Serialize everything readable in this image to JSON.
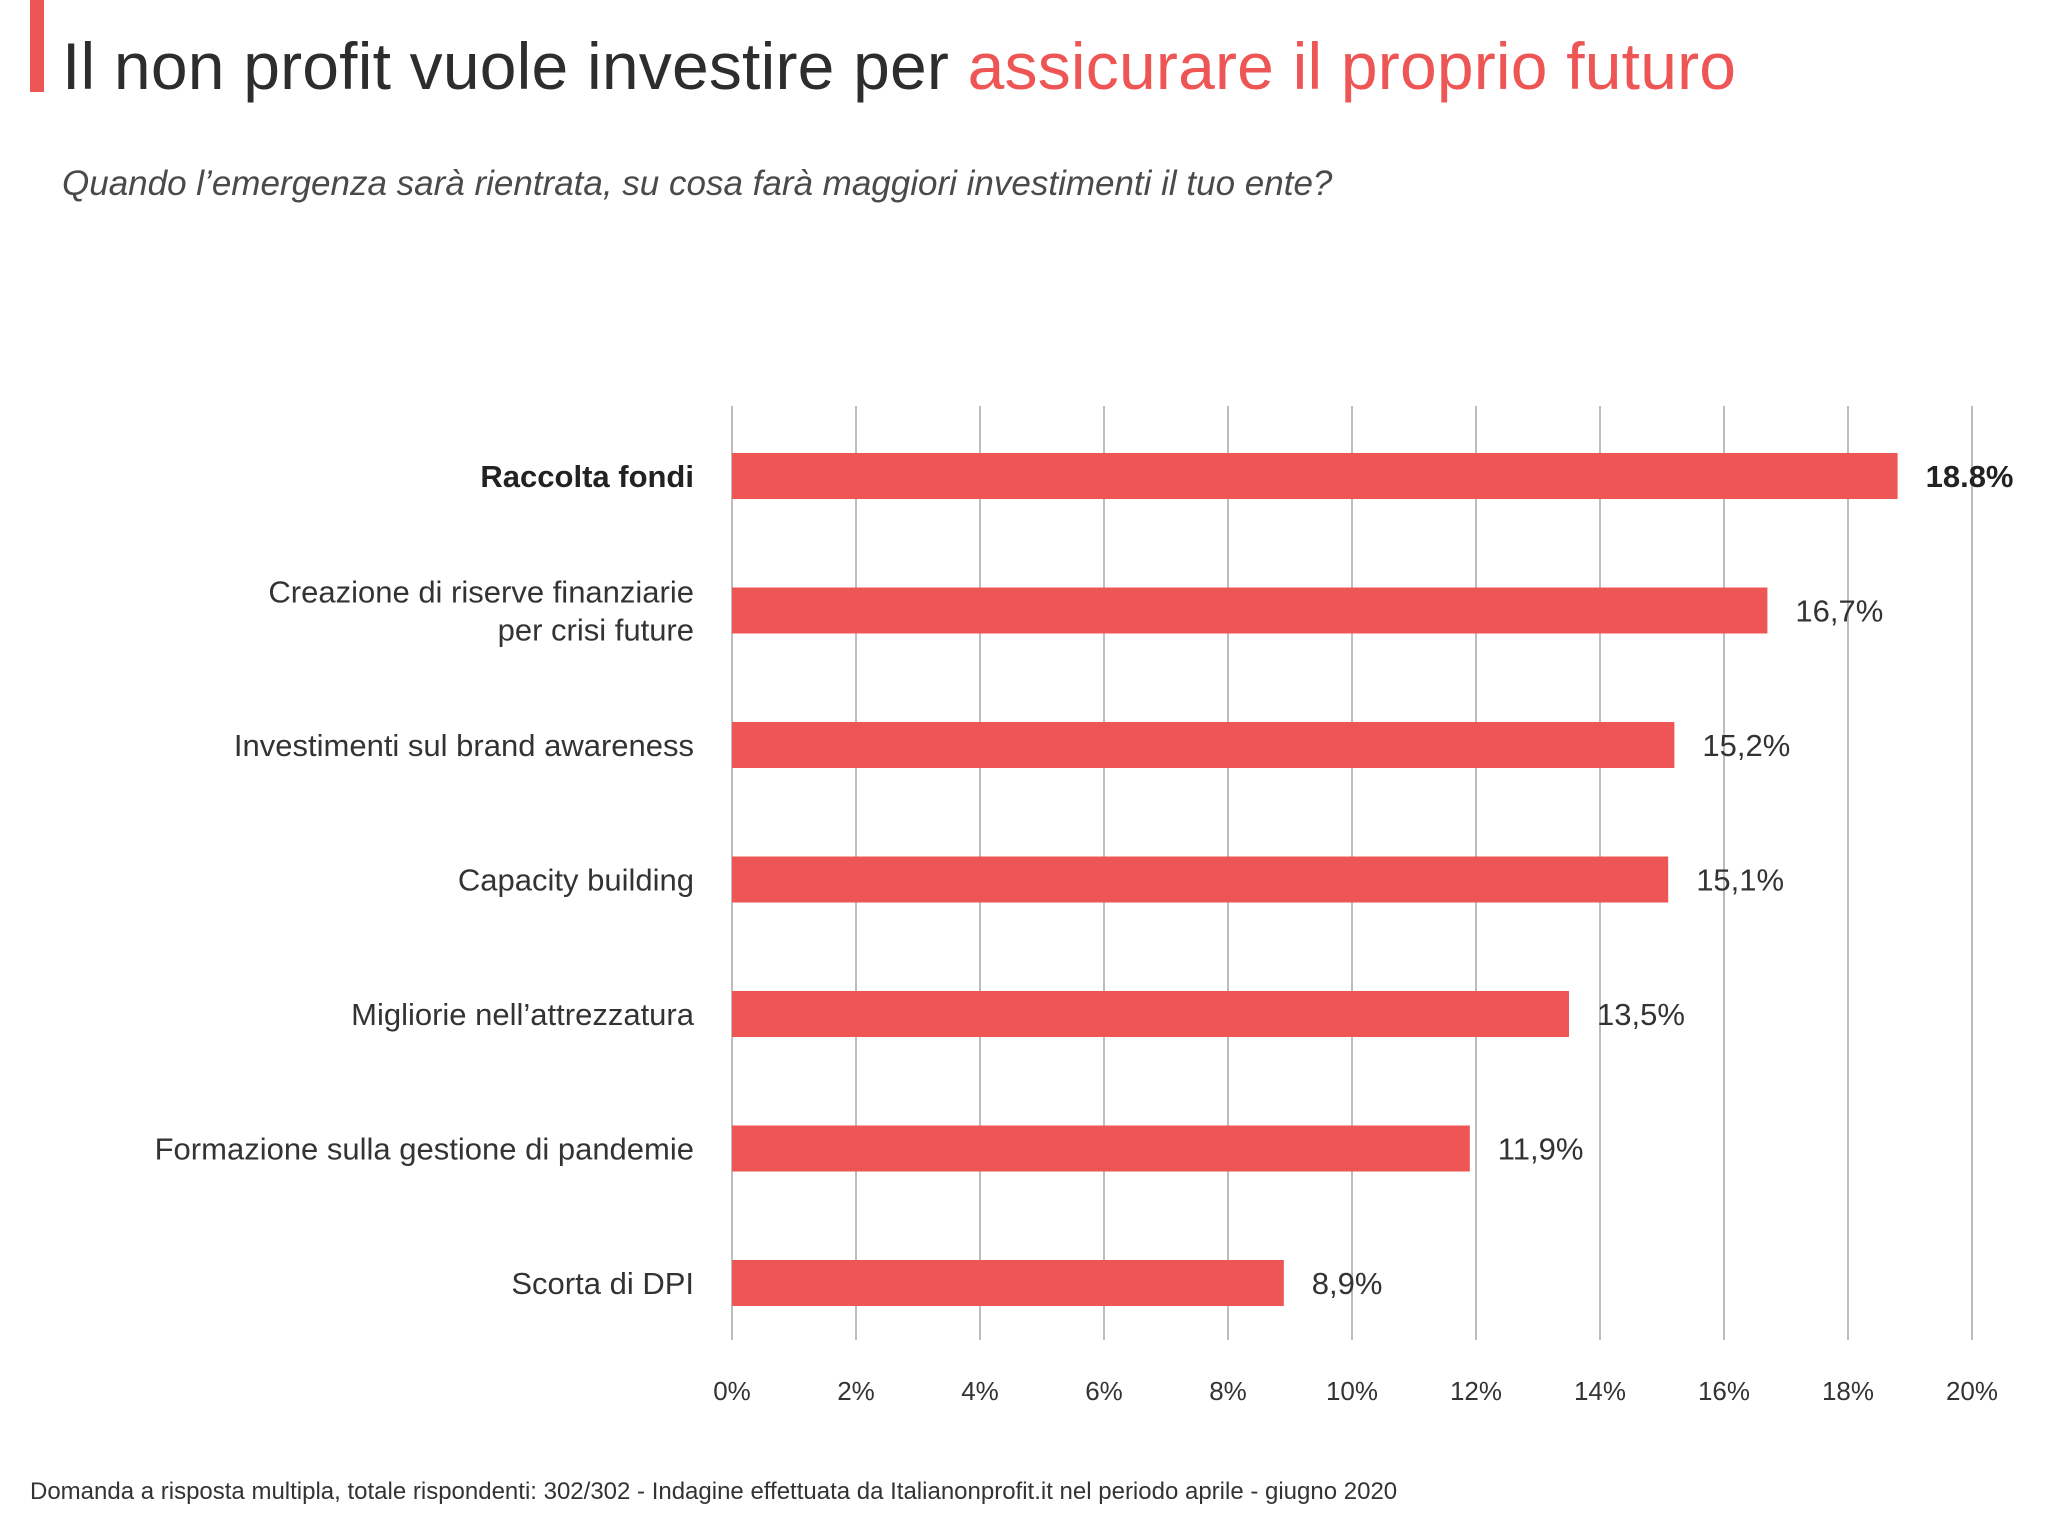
{
  "header": {
    "title_plain": "Il non profit vuole investire per ",
    "title_highlight": "assicurare il proprio futuro",
    "subtitle": "Quando l’emergenza sarà rientrata, su cosa farà maggiori investimenti il tuo ente?"
  },
  "footer": {
    "note": "Domanda a risposta multipla, totale rispondenti: 302/302 - Indagine effettuata da Italianonprofit.it nel periodo aprile - giugno 2020"
  },
  "colors": {
    "accent": "#ee5555",
    "bar": "#ee5555",
    "text": "#333333",
    "grid": "#bdbdbd"
  },
  "chart_data": {
    "type": "bar",
    "orientation": "horizontal",
    "grid": true,
    "xlim": [
      0,
      20
    ],
    "xticks": [
      0,
      2,
      4,
      6,
      8,
      10,
      12,
      14,
      16,
      18,
      20
    ],
    "xtick_labels": [
      "0%",
      "2%",
      "4%",
      "6%",
      "8%",
      "10%",
      "12%",
      "14%",
      "16%",
      "18%",
      "20%"
    ],
    "categories": [
      [
        "Raccolta fondi"
      ],
      [
        "Creazione di riserve finanziarie",
        "per crisi future"
      ],
      [
        "Investimenti sul brand awareness"
      ],
      [
        "Capacity building"
      ],
      [
        "Migliorie nell’attrezzatura"
      ],
      [
        "Formazione sulla gestione di pandemie"
      ],
      [
        "Scorta di DPI"
      ]
    ],
    "values": [
      18.8,
      16.7,
      15.2,
      15.1,
      13.5,
      11.9,
      8.9
    ],
    "value_labels": [
      "18.8%",
      "16,7%",
      "15,2%",
      "15,1%",
      "13,5%",
      "11,9%",
      "8,9%"
    ],
    "emphasized": [
      true,
      false,
      false,
      false,
      false,
      false,
      false
    ]
  }
}
